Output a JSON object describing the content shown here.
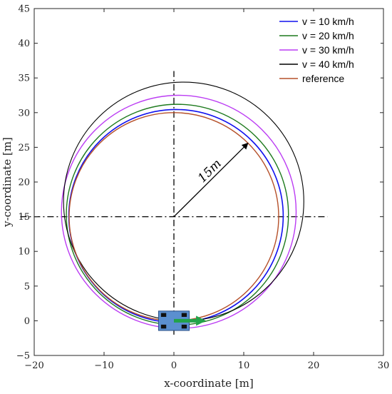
{
  "chart_data": {
    "type": "line",
    "title": "",
    "xlabel": "x-coordinate [m]",
    "ylabel": "y-coordinate [m]",
    "xlim": [
      -20,
      30
    ],
    "ylim": [
      -5,
      45
    ],
    "xticks": [
      -20,
      -10,
      0,
      10,
      20,
      30
    ],
    "yticks": [
      -5,
      0,
      5,
      10,
      15,
      20,
      25,
      30,
      35,
      40,
      45
    ],
    "xtick_labels": [
      "−20",
      "−10",
      "0",
      "10",
      "20",
      "30"
    ],
    "ytick_labels": [
      "−5",
      "0",
      "5",
      "10",
      "15",
      "20",
      "25",
      "30",
      "35",
      "40",
      "45"
    ],
    "grid": false,
    "legend_position": "top-right",
    "series": [
      {
        "name": "v = 10 km/h",
        "color": "#1010ee",
        "shape": "circle",
        "center": [
          0.3,
          15.1
        ],
        "radius": 15.35,
        "width": 1.6
      },
      {
        "name": "v = 20 km/h",
        "color": "#1d7a1d",
        "shape": "circle",
        "center": [
          0.5,
          15.3
        ],
        "radius": 15.9,
        "width": 1.4
      },
      {
        "name": "v = 30 km/h",
        "color": "#bb3cf3",
        "shape": "circle",
        "center": [
          0.7,
          15.7
        ],
        "radius": 16.8,
        "width": 1.4
      },
      {
        "name": "v = 40 km/h",
        "color": "#000000",
        "shape": "circle",
        "center": [
          1.4,
          17.2
        ],
        "radius": 17.2,
        "width": 1.1
      },
      {
        "name": "reference",
        "color": "#b5502a",
        "shape": "circle",
        "center": [
          0,
          15
        ],
        "radius": 15,
        "width": 1.4
      }
    ],
    "center_lines": {
      "x": 0,
      "y": 15,
      "x_range": [
        -22,
        22
      ],
      "y_range": [
        -2,
        36
      ]
    },
    "radius_arrow": {
      "from": [
        0,
        15
      ],
      "to": [
        10.6,
        25.6
      ]
    },
    "annotation": {
      "text": "15m",
      "at": [
        5.5,
        21.2
      ],
      "rotation_deg": -45
    },
    "vehicle": {
      "center": [
        0,
        0
      ],
      "width": 4.4,
      "height": 2.8,
      "color": "#5b8fcf",
      "wheel_color": "#111111"
    },
    "heading_arrow": {
      "from": [
        0,
        0
      ],
      "to": [
        4.6,
        0
      ],
      "color": "#22a34a"
    }
  }
}
